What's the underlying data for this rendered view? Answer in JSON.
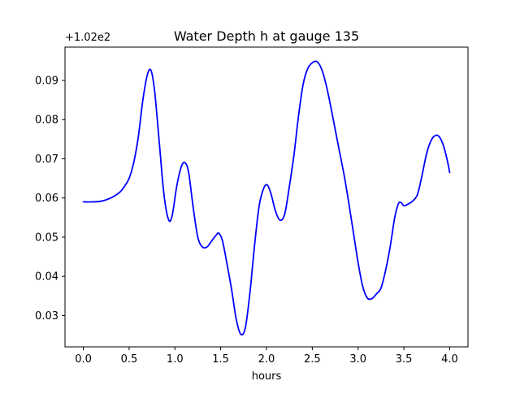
{
  "chart_data": {
    "type": "line",
    "title": "Water Depth h at gauge 135",
    "xlabel": "hours",
    "ylabel": "",
    "offset_label": "+1.02e2",
    "xlim": [
      -0.2,
      4.2
    ],
    "ylim": [
      0.022,
      0.0985
    ],
    "grid": false,
    "x_ticks": [
      0.0,
      0.5,
      1.0,
      1.5,
      2.0,
      2.5,
      3.0,
      3.5,
      4.0
    ],
    "x_tick_labels": [
      "0.0",
      "0.5",
      "1.0",
      "1.5",
      "2.0",
      "2.5",
      "3.0",
      "3.5",
      "4.0"
    ],
    "y_ticks": [
      0.03,
      0.04,
      0.05,
      0.06,
      0.07,
      0.08,
      0.09
    ],
    "y_tick_labels": [
      "0.03",
      "0.04",
      "0.05",
      "0.06",
      "0.07",
      "0.08",
      "0.09"
    ],
    "series": [
      {
        "color": "#0000ff",
        "x": [
          0.0,
          0.1,
          0.2,
          0.3,
          0.4,
          0.45,
          0.5,
          0.55,
          0.6,
          0.65,
          0.7,
          0.74,
          0.78,
          0.83,
          0.88,
          0.93,
          0.97,
          1.02,
          1.07,
          1.11,
          1.15,
          1.2,
          1.25,
          1.3,
          1.35,
          1.4,
          1.45,
          1.48,
          1.52,
          1.57,
          1.62,
          1.67,
          1.72,
          1.77,
          1.82,
          1.87,
          1.92,
          1.97,
          2.01,
          2.05,
          2.1,
          2.15,
          2.2,
          2.25,
          2.3,
          2.35,
          2.4,
          2.45,
          2.5,
          2.55,
          2.6,
          2.65,
          2.7,
          2.75,
          2.8,
          2.85,
          2.9,
          2.95,
          3.0,
          3.05,
          3.1,
          3.15,
          3.2,
          3.25,
          3.3,
          3.35,
          3.4,
          3.44,
          3.47,
          3.5,
          3.55,
          3.6,
          3.65,
          3.7,
          3.75,
          3.8,
          3.85,
          3.89,
          3.93,
          3.97,
          4.0
        ],
        "y": [
          0.059,
          0.059,
          0.0592,
          0.06,
          0.0615,
          0.063,
          0.065,
          0.069,
          0.0755,
          0.085,
          0.0915,
          0.0925,
          0.087,
          0.074,
          0.061,
          0.0545,
          0.0555,
          0.063,
          0.068,
          0.069,
          0.0665,
          0.0575,
          0.05,
          0.0475,
          0.0475,
          0.049,
          0.0505,
          0.051,
          0.049,
          0.043,
          0.0365,
          0.029,
          0.0252,
          0.027,
          0.036,
          0.048,
          0.058,
          0.0625,
          0.0633,
          0.061,
          0.0565,
          0.0543,
          0.056,
          0.063,
          0.071,
          0.081,
          0.089,
          0.093,
          0.0945,
          0.0948,
          0.093,
          0.089,
          0.0835,
          0.0775,
          0.0715,
          0.0655,
          0.0585,
          0.051,
          0.0435,
          0.0375,
          0.0345,
          0.0343,
          0.0355,
          0.037,
          0.0415,
          0.0475,
          0.055,
          0.0585,
          0.0588,
          0.058,
          0.0585,
          0.0593,
          0.061,
          0.066,
          0.0715,
          0.0748,
          0.076,
          0.0755,
          0.0735,
          0.07,
          0.0665
        ]
      }
    ]
  }
}
